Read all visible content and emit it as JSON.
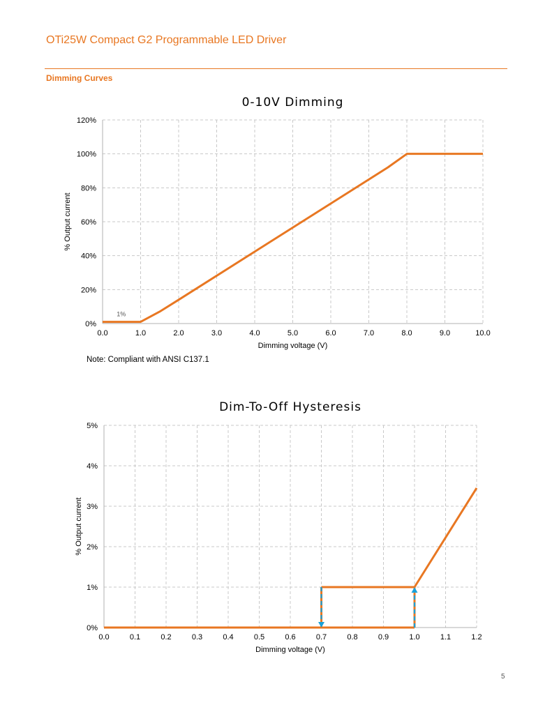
{
  "header": {
    "document_title": "OTi25W Compact G2 Programmable LED Driver",
    "section_title": "Dimming Curves"
  },
  "colors": {
    "accent": "#e87722",
    "hysteresis_arrow": "#1ba1d8",
    "grid": "#c8c8c8"
  },
  "note": "Note: Compliant with ANSI C137.1",
  "page_number": "5",
  "chart_data": [
    {
      "type": "line",
      "title": "0-10V Dimming",
      "xlabel": "Dimming voltage (V)",
      "ylabel": "% Output current",
      "xlim": [
        0,
        10
      ],
      "ylim": [
        0,
        120
      ],
      "x_ticks": [
        "0.0",
        "1.0",
        "2.0",
        "3.0",
        "4.0",
        "5.0",
        "6.0",
        "7.0",
        "8.0",
        "9.0",
        "10.0"
      ],
      "y_ticks": [
        "0%",
        "20%",
        "40%",
        "60%",
        "80%",
        "100%",
        "120%"
      ],
      "grid": true,
      "series": [
        {
          "x": [
            0,
            1.0,
            1.5,
            2.0,
            7.5,
            8.0,
            10.0
          ],
          "y": [
            1,
            1,
            7,
            14,
            92,
            100,
            100
          ],
          "color": "#e87722"
        }
      ],
      "annotations": [
        {
          "text": "1%",
          "x": 0.5,
          "y": 1
        }
      ]
    },
    {
      "type": "line",
      "title": "Dim-To-Off Hysteresis",
      "xlabel": "Dimming voltage (V)",
      "ylabel": "% Output current",
      "xlim": [
        0,
        1.2
      ],
      "ylim": [
        0,
        5
      ],
      "x_ticks": [
        "0.0",
        "0.1",
        "0.2",
        "0.3",
        "0.4",
        "0.5",
        "0.6",
        "0.7",
        "0.8",
        "0.9",
        "1.0",
        "1.1",
        "1.2"
      ],
      "y_ticks": [
        "0%",
        "1%",
        "2%",
        "3%",
        "4%",
        "5%"
      ],
      "grid": true,
      "series": [
        {
          "x": [
            0,
            1.0
          ],
          "y": [
            0,
            0
          ],
          "color": "#e87722"
        },
        {
          "x": [
            0.7,
            1.0,
            1.2
          ],
          "y": [
            1,
            1,
            3.45
          ],
          "color": "#e87722"
        },
        {
          "x": [
            0.7,
            0.7
          ],
          "y": [
            1,
            0
          ],
          "color": "#e87722"
        },
        {
          "x": [
            1.0,
            1.0
          ],
          "y": [
            0,
            1
          ],
          "color": "#e87722"
        }
      ],
      "arrows": [
        {
          "x": [
            0.7,
            0.7
          ],
          "y": [
            1,
            0
          ],
          "direction": "down",
          "color": "#1ba1d8"
        },
        {
          "x": [
            1.0,
            1.0
          ],
          "y": [
            0,
            1
          ],
          "direction": "up",
          "color": "#1ba1d8"
        }
      ]
    }
  ]
}
